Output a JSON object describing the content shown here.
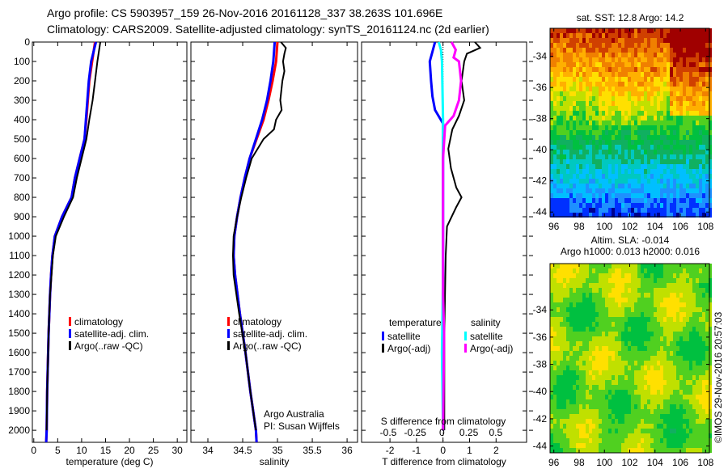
{
  "title": {
    "line1": "Argo profile: CS 5903957_159 26-Nov-2016 20161128_337 38.263S 101.696E",
    "line2": "Climatology: CARS2009. Satellite-adjusted climatology: synTS_20161124.nc (2d earlier)"
  },
  "credit": "©IMOS 29-Nov-2016 20:57:03",
  "colors": {
    "climatology": "#ff0000",
    "satellite": "#0000ff",
    "argo": "#000000",
    "s_satellite": "#00ffff",
    "s_argo": "#ff00ff"
  },
  "chart_data": [
    {
      "type": "line",
      "name": "temperature",
      "xlabel": "temperature (deg C)",
      "ylabel": "",
      "xlim": [
        -0.3,
        32
      ],
      "ylim": [
        0,
        2062
      ],
      "xticks": [
        0,
        5,
        10,
        15,
        20,
        25,
        30
      ],
      "yticks": [
        0,
        100,
        200,
        300,
        400,
        500,
        600,
        700,
        800,
        900,
        1000,
        1100,
        1200,
        1300,
        1400,
        1500,
        1600,
        1700,
        1800,
        1900,
        2000
      ],
      "legend": [
        "climatology",
        "satellite-adj. clim.",
        "Argo(..raw -QC)"
      ],
      "series": [
        {
          "name": "climatology",
          "color": "#ff0000",
          "points": [
            [
              0,
              12.8
            ],
            [
              100,
              12.2
            ],
            [
              200,
              11.6
            ],
            [
              300,
              11.3
            ],
            [
              400,
              11.0
            ],
            [
              500,
              10.6
            ],
            [
              600,
              9.6
            ],
            [
              700,
              8.6
            ],
            [
              800,
              7.9
            ],
            [
              900,
              5.9
            ],
            [
              1000,
              4.4
            ],
            [
              1100,
              3.9
            ],
            [
              1200,
              3.6
            ],
            [
              1300,
              3.4
            ],
            [
              1500,
              3.1
            ],
            [
              1800,
              2.8
            ],
            [
              2000,
              2.7
            ],
            [
              2062,
              2.6
            ]
          ]
        },
        {
          "name": "satellite-adj. clim.",
          "color": "#0000ff",
          "points": [
            [
              0,
              13.0
            ],
            [
              100,
              12.0
            ],
            [
              200,
              11.5
            ],
            [
              300,
              11.2
            ],
            [
              400,
              10.9
            ],
            [
              500,
              10.6
            ],
            [
              600,
              9.6
            ],
            [
              700,
              8.6
            ],
            [
              800,
              7.9
            ],
            [
              900,
              5.9
            ],
            [
              1000,
              4.4
            ],
            [
              1100,
              3.9
            ],
            [
              1200,
              3.6
            ],
            [
              1300,
              3.4
            ],
            [
              1500,
              3.1
            ],
            [
              1800,
              2.8
            ],
            [
              2000,
              2.7
            ],
            [
              2062,
              2.6
            ]
          ]
        },
        {
          "name": "Argo(..raw -QC)",
          "color": "#000000",
          "points": [
            [
              0,
              13.9
            ],
            [
              50,
              13.6
            ],
            [
              100,
              13.3
            ],
            [
              200,
              12.8
            ],
            [
              300,
              12.3
            ],
            [
              400,
              11.6
            ],
            [
              500,
              11.0
            ],
            [
              600,
              10.0
            ],
            [
              700,
              9.0
            ],
            [
              800,
              8.2
            ],
            [
              900,
              6.3
            ],
            [
              1000,
              4.6
            ],
            [
              1100,
              4.0
            ],
            [
              1200,
              3.7
            ],
            [
              1300,
              3.4
            ],
            [
              1500,
              3.1
            ],
            [
              1800,
              2.8
            ],
            [
              2000,
              2.7
            ]
          ]
        }
      ]
    },
    {
      "type": "line",
      "name": "salinity",
      "xlabel": "salinity",
      "xlim": [
        33.756,
        36.15
      ],
      "ylim": [
        0,
        2062
      ],
      "xticks": [
        34,
        34.5,
        35,
        35.5,
        36
      ],
      "legend": [
        "climatology",
        "satellite-adj. clim.",
        "Argo(..raw -QC)"
      ],
      "annotation": [
        "Argo Australia",
        "PI: Susan Wijffels"
      ],
      "series": [
        {
          "name": "climatology",
          "color": "#ff0000",
          "points": [
            [
              0,
              35.0
            ],
            [
              100,
              34.98
            ],
            [
              200,
              34.93
            ],
            [
              300,
              34.87
            ],
            [
              400,
              34.8
            ],
            [
              500,
              34.7
            ],
            [
              600,
              34.6
            ],
            [
              700,
              34.53
            ],
            [
              800,
              34.47
            ],
            [
              900,
              34.42
            ],
            [
              1000,
              34.38
            ],
            [
              1100,
              34.37
            ],
            [
              1200,
              34.39
            ],
            [
              1400,
              34.46
            ],
            [
              1600,
              34.54
            ],
            [
              1800,
              34.61
            ],
            [
              2000,
              34.69
            ],
            [
              2062,
              34.7
            ]
          ]
        },
        {
          "name": "satellite-adj. clim.",
          "color": "#0000ff",
          "points": [
            [
              0,
              34.96
            ],
            [
              100,
              34.94
            ],
            [
              200,
              34.9
            ],
            [
              300,
              34.85
            ],
            [
              400,
              34.78
            ],
            [
              500,
              34.69
            ],
            [
              600,
              34.6
            ],
            [
              700,
              34.53
            ],
            [
              800,
              34.47
            ],
            [
              900,
              34.42
            ],
            [
              1000,
              34.38
            ],
            [
              1100,
              34.37
            ],
            [
              1200,
              34.39
            ],
            [
              1400,
              34.46
            ],
            [
              1600,
              34.54
            ],
            [
              1800,
              34.61
            ],
            [
              2000,
              34.69
            ],
            [
              2062,
              34.7
            ]
          ]
        },
        {
          "name": "Argo(..raw -QC)",
          "color": "#000000",
          "points": [
            [
              0,
              35.05
            ],
            [
              30,
              35.12
            ],
            [
              60,
              35.1
            ],
            [
              100,
              35.08
            ],
            [
              150,
              35.1
            ],
            [
              200,
              35.07
            ],
            [
              300,
              35.04
            ],
            [
              350,
              35.06
            ],
            [
              400,
              34.98
            ],
            [
              450,
              34.95
            ],
            [
              500,
              34.8
            ],
            [
              600,
              34.63
            ],
            [
              700,
              34.55
            ],
            [
              800,
              34.48
            ],
            [
              900,
              34.42
            ],
            [
              1000,
              34.37
            ],
            [
              1100,
              34.36
            ],
            [
              1200,
              34.37
            ],
            [
              1400,
              34.45
            ],
            [
              1600,
              34.54
            ],
            [
              1800,
              34.61
            ],
            [
              2000,
              34.69
            ]
          ]
        }
      ]
    },
    {
      "type": "line",
      "name": "difference",
      "xlabel": "T difference from climatology",
      "x2label": "S difference from climatology",
      "xlim": [
        -3.07,
        3.15
      ],
      "ylim": [
        0,
        2062
      ],
      "xticks": [
        -2,
        -1,
        0,
        1,
        2
      ],
      "x2ticks": [
        "-0.5",
        "-0.25",
        "0",
        "0.25",
        "0.5"
      ],
      "s_scale": 4,
      "legend": {
        "temperature": [
          "satellite",
          "Argo(-adj)"
        ],
        "salinity": [
          "satellite",
          "Argo(-adj)"
        ],
        "headers": [
          "temperature",
          "salinity"
        ]
      },
      "series": [
        {
          "name": "T satellite",
          "color": "#0000ff",
          "points": [
            [
              0,
              -0.3
            ],
            [
              50,
              -0.4
            ],
            [
              100,
              -0.5
            ],
            [
              200,
              -0.45
            ],
            [
              280,
              -0.4
            ],
            [
              350,
              -0.3
            ],
            [
              420,
              0
            ],
            [
              500,
              0
            ],
            [
              2000,
              0
            ]
          ]
        },
        {
          "name": "T Argo(-adj)",
          "color": "#000000",
          "points": [
            [
              0,
              1.2
            ],
            [
              30,
              1.4
            ],
            [
              60,
              0.9
            ],
            [
              100,
              0.8
            ],
            [
              200,
              0.7
            ],
            [
              300,
              0.8
            ],
            [
              380,
              0.6
            ],
            [
              450,
              0.35
            ],
            [
              550,
              0.2
            ],
            [
              650,
              0.3
            ],
            [
              750,
              0.5
            ],
            [
              800,
              0.7
            ],
            [
              850,
              0.5
            ],
            [
              950,
              0.15
            ],
            [
              1100,
              0.1
            ],
            [
              1500,
              0.05
            ],
            [
              2000,
              0.05
            ]
          ]
        },
        {
          "name": "S satellite",
          "color": "#00ffff",
          "points": [
            [
              0,
              -0.04
            ],
            [
              40,
              -0.02
            ],
            [
              100,
              -0.01
            ],
            [
              400,
              0
            ],
            [
              800,
              0
            ],
            [
              1200,
              0
            ],
            [
              1600,
              -0.01
            ],
            [
              2000,
              0
            ]
          ]
        },
        {
          "name": "S Argo(-adj)",
          "color": "#ff00ff",
          "points": [
            [
              0,
              0.08
            ],
            [
              40,
              0.12
            ],
            [
              80,
              0.1
            ],
            [
              100,
              0.15
            ],
            [
              200,
              0.17
            ],
            [
              300,
              0.15
            ],
            [
              380,
              0.1
            ],
            [
              430,
              0.02
            ],
            [
              600,
              0
            ],
            [
              1100,
              0
            ],
            [
              1300,
              0
            ],
            [
              1500,
              0.01
            ],
            [
              2000,
              0
            ]
          ]
        }
      ]
    },
    {
      "type": "heatmap",
      "name": "sst-map",
      "title": "sat. SST: 12.8 Argo: 14.2",
      "xlim": [
        95.7,
        108.3
      ],
      "ylim": [
        -44.3,
        -32.2
      ],
      "xticks": [
        96,
        98,
        100,
        102,
        104,
        106,
        108
      ],
      "yticks": [
        -34,
        -36,
        -38,
        -40,
        -42,
        -44
      ]
    },
    {
      "type": "heatmap",
      "name": "sla-map",
      "title": [
        "Altim. SLA: -0.014",
        "Argo h1000: 0.013 h2000: 0.016"
      ],
      "xlim": [
        95.7,
        108.3
      ],
      "ylim": [
        -44.5,
        -30.6
      ],
      "xticks": [
        96,
        98,
        100,
        102,
        104,
        106,
        108
      ],
      "yticks": [
        -34,
        -36,
        -38,
        -40,
        -42,
        -44
      ]
    }
  ]
}
